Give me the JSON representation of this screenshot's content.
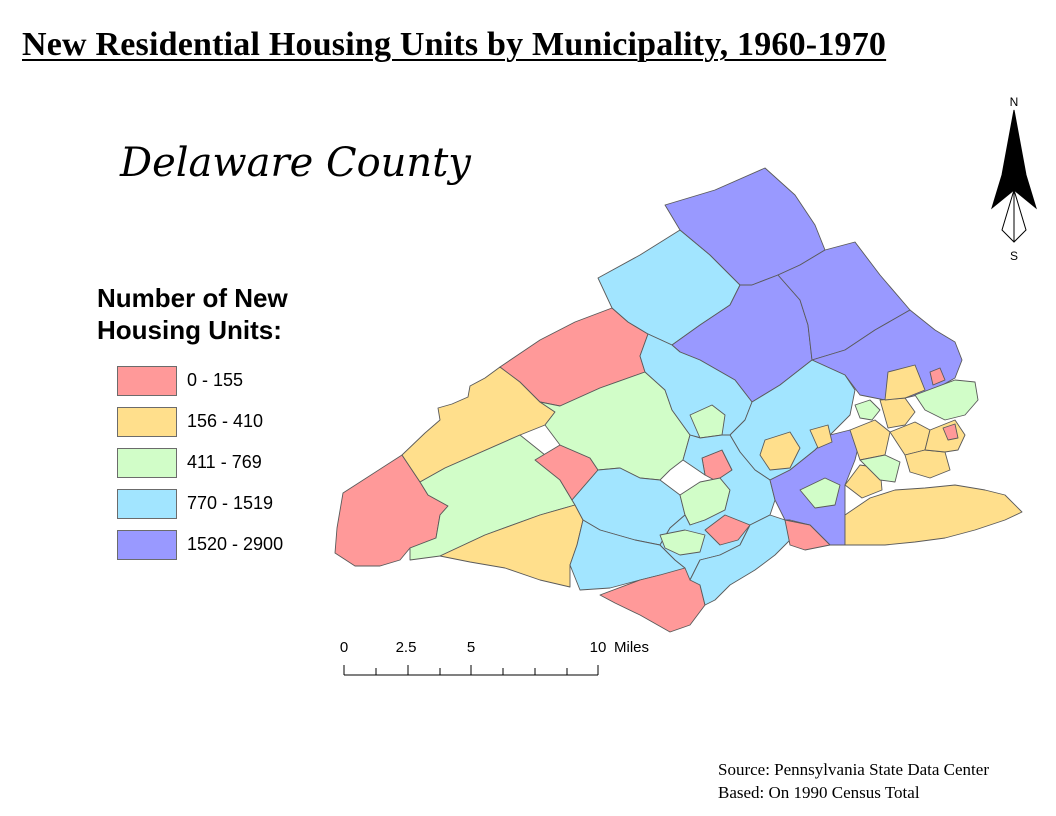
{
  "title": "New Residential Housing Units by Municipality, 1960-1970",
  "subtitle": "Delaware County",
  "legend": {
    "title": "Number of New Housing Units:",
    "classes": [
      {
        "label": "0 - 155",
        "color": "#ff9999"
      },
      {
        "label": "156 - 410",
        "color": "#ffdf8c"
      },
      {
        "label": "411 - 769",
        "color": "#d1fdc8"
      },
      {
        "label": "770 - 1519",
        "color": "#a2e5ff"
      },
      {
        "label": "1520 - 2900",
        "color": "#9999ff"
      }
    ]
  },
  "north_arrow": {
    "north": "N",
    "south": "S"
  },
  "scale_bar": {
    "ticks": [
      "0",
      "2.5",
      "5",
      "10"
    ],
    "unit": "Miles"
  },
  "source": {
    "line1": "Source: Pennsylvania State Data Center",
    "line2": "Based: On 1990 Census Total"
  }
}
